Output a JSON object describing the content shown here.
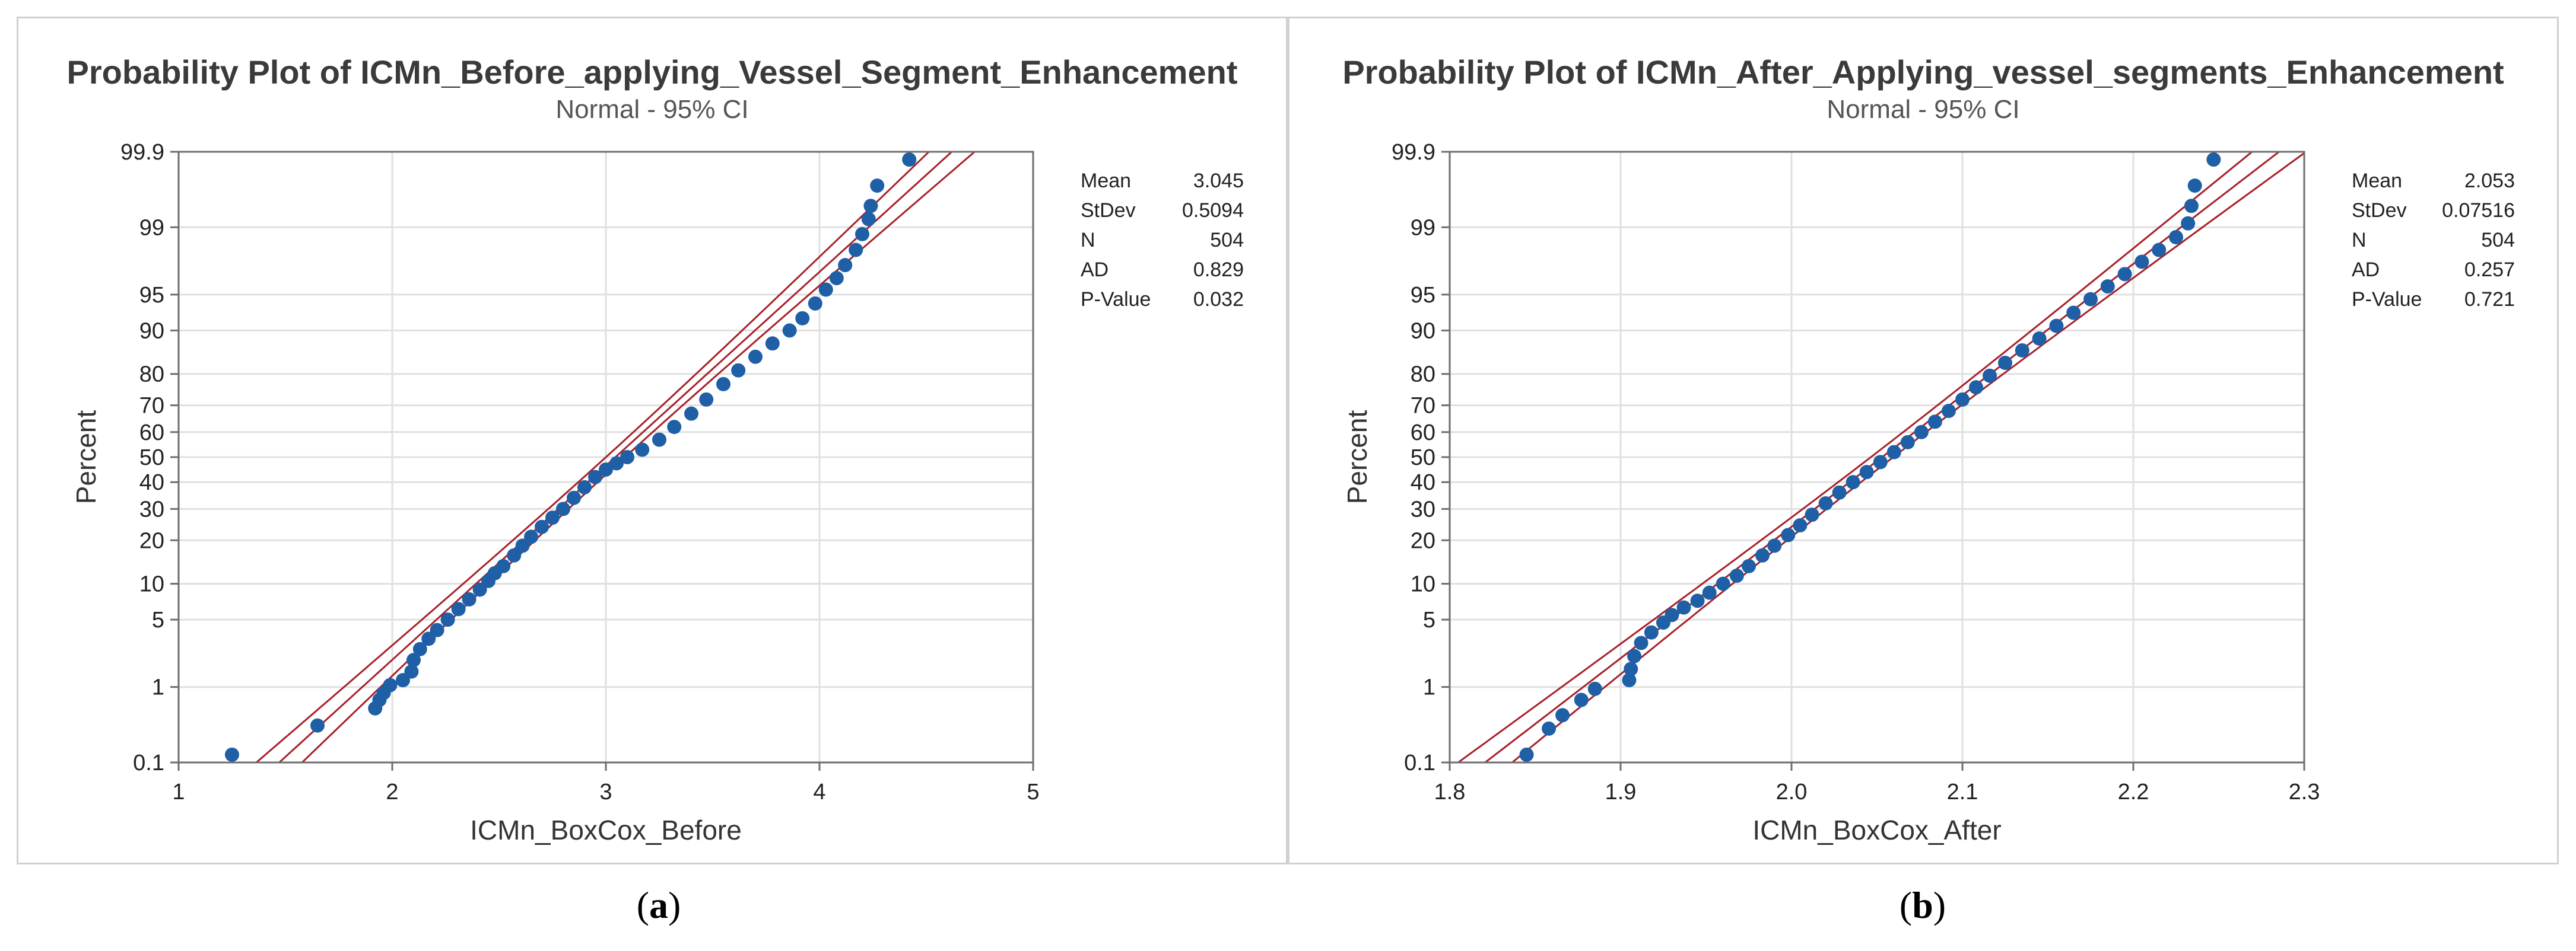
{
  "captions": [
    "(a)",
    "(b)"
  ],
  "caption_letters": [
    "a",
    "b"
  ],
  "chart_data": [
    {
      "type": "scatter",
      "title": "Probability Plot of ICMn_Before_applying_Vessel_Segment_Enhancement",
      "subtitle": "Normal - 95% CI",
      "xlabel": "ICMn_BoxCox_Before",
      "ylabel": "Percent",
      "xlim": [
        1,
        5
      ],
      "x_ticks": [
        1,
        2,
        3,
        4,
        5
      ],
      "y_scale": "normal probability",
      "y_ticks": [
        0.1,
        1,
        5,
        10,
        20,
        30,
        40,
        50,
        60,
        70,
        80,
        90,
        95,
        99,
        99.9
      ],
      "grid": true,
      "colors": {
        "points": "#1f5fa6",
        "fit_line": "#a8202a"
      },
      "stats": [
        {
          "label": "Mean",
          "value": "3.045"
        },
        {
          "label": "StDev",
          "value": "0.5094"
        },
        {
          "label": "N",
          "value": "504"
        },
        {
          "label": "AD",
          "value": "0.829"
        },
        {
          "label": "P-Value",
          "value": "0.032"
        }
      ],
      "fit": {
        "mean": 3.045,
        "stdev": 0.5094,
        "n": 504
      },
      "points": [
        [
          1.25,
          0.13
        ],
        [
          1.65,
          0.33
        ],
        [
          1.92,
          0.55
        ],
        [
          1.94,
          0.7
        ],
        [
          1.96,
          0.85
        ],
        [
          1.99,
          1.05
        ],
        [
          2.05,
          1.2
        ],
        [
          2.09,
          1.5
        ],
        [
          2.1,
          2.0
        ],
        [
          2.13,
          2.6
        ],
        [
          2.17,
          3.3
        ],
        [
          2.21,
          4.0
        ],
        [
          2.26,
          5.0
        ],
        [
          2.31,
          6.2
        ],
        [
          2.36,
          7.5
        ],
        [
          2.41,
          9.0
        ],
        [
          2.45,
          10.5
        ],
        [
          2.48,
          12.0
        ],
        [
          2.52,
          13.5
        ],
        [
          2.57,
          16.0
        ],
        [
          2.61,
          18.5
        ],
        [
          2.65,
          21.0
        ],
        [
          2.7,
          24.0
        ],
        [
          2.75,
          27.0
        ],
        [
          2.8,
          30.0
        ],
        [
          2.85,
          34.0
        ],
        [
          2.9,
          38.0
        ],
        [
          2.95,
          42.0
        ],
        [
          3.0,
          45.0
        ],
        [
          3.05,
          47.5
        ],
        [
          3.1,
          50.0
        ],
        [
          3.17,
          53.0
        ],
        [
          3.25,
          57.0
        ],
        [
          3.32,
          62.0
        ],
        [
          3.4,
          67.0
        ],
        [
          3.47,
          72.0
        ],
        [
          3.55,
          77.0
        ],
        [
          3.62,
          81.0
        ],
        [
          3.7,
          84.5
        ],
        [
          3.78,
          87.5
        ],
        [
          3.86,
          90.0
        ],
        [
          3.92,
          92.0
        ],
        [
          3.98,
          94.0
        ],
        [
          4.03,
          95.5
        ],
        [
          4.08,
          96.5
        ],
        [
          4.12,
          97.4
        ],
        [
          4.17,
          98.2
        ],
        [
          4.2,
          98.8
        ],
        [
          4.23,
          99.2
        ],
        [
          4.24,
          99.45
        ],
        [
          4.27,
          99.7
        ],
        [
          4.42,
          99.87
        ]
      ]
    },
    {
      "type": "scatter",
      "title": "Probability Plot of ICMn_After_Applying_vessel_segments_Enhancement",
      "subtitle": "Normal - 95% CI",
      "xlabel": "ICMn_BoxCox_After",
      "ylabel": "Percent",
      "xlim": [
        1.8,
        2.3
      ],
      "x_ticks": [
        1.8,
        1.9,
        2.0,
        2.1,
        2.2,
        2.3
      ],
      "y_scale": "normal probability",
      "y_ticks": [
        0.1,
        1,
        5,
        10,
        20,
        30,
        40,
        50,
        60,
        70,
        80,
        90,
        95,
        99,
        99.9
      ],
      "grid": true,
      "colors": {
        "points": "#1f5fa6",
        "fit_line": "#a8202a"
      },
      "stats": [
        {
          "label": "Mean",
          "value": "2.053"
        },
        {
          "label": "StDev",
          "value": "0.07516"
        },
        {
          "label": "N",
          "value": "504"
        },
        {
          "label": "AD",
          "value": "0.257"
        },
        {
          "label": "P-Value",
          "value": "0.721"
        }
      ],
      "fit": {
        "mean": 2.053,
        "stdev": 0.07516,
        "n": 504
      },
      "points": [
        [
          1.845,
          0.13
        ],
        [
          1.858,
          0.3
        ],
        [
          1.866,
          0.45
        ],
        [
          1.877,
          0.7
        ],
        [
          1.885,
          0.95
        ],
        [
          1.905,
          1.2
        ],
        [
          1.906,
          1.6
        ],
        [
          1.908,
          2.2
        ],
        [
          1.912,
          3.0
        ],
        [
          1.918,
          3.8
        ],
        [
          1.925,
          4.7
        ],
        [
          1.93,
          5.5
        ],
        [
          1.937,
          6.4
        ],
        [
          1.945,
          7.3
        ],
        [
          1.952,
          8.5
        ],
        [
          1.96,
          10.0
        ],
        [
          1.968,
          11.5
        ],
        [
          1.975,
          13.5
        ],
        [
          1.983,
          16.0
        ],
        [
          1.99,
          18.5
        ],
        [
          1.998,
          21.5
        ],
        [
          2.005,
          24.5
        ],
        [
          2.012,
          28.0
        ],
        [
          2.02,
          32.0
        ],
        [
          2.028,
          36.0
        ],
        [
          2.036,
          40.0
        ],
        [
          2.044,
          44.0
        ],
        [
          2.052,
          48.0
        ],
        [
          2.06,
          52.0
        ],
        [
          2.068,
          56.0
        ],
        [
          2.076,
          60.0
        ],
        [
          2.084,
          64.0
        ],
        [
          2.092,
          68.0
        ],
        [
          2.1,
          72.0
        ],
        [
          2.108,
          76.0
        ],
        [
          2.116,
          79.5
        ],
        [
          2.125,
          83.0
        ],
        [
          2.135,
          86.0
        ],
        [
          2.145,
          88.5
        ],
        [
          2.155,
          90.8
        ],
        [
          2.165,
          92.8
        ],
        [
          2.175,
          94.5
        ],
        [
          2.185,
          95.8
        ],
        [
          2.195,
          96.8
        ],
        [
          2.205,
          97.6
        ],
        [
          2.215,
          98.2
        ],
        [
          2.225,
          98.7
        ],
        [
          2.232,
          99.1
        ],
        [
          2.234,
          99.45
        ],
        [
          2.236,
          99.7
        ],
        [
          2.247,
          99.87
        ]
      ]
    }
  ]
}
